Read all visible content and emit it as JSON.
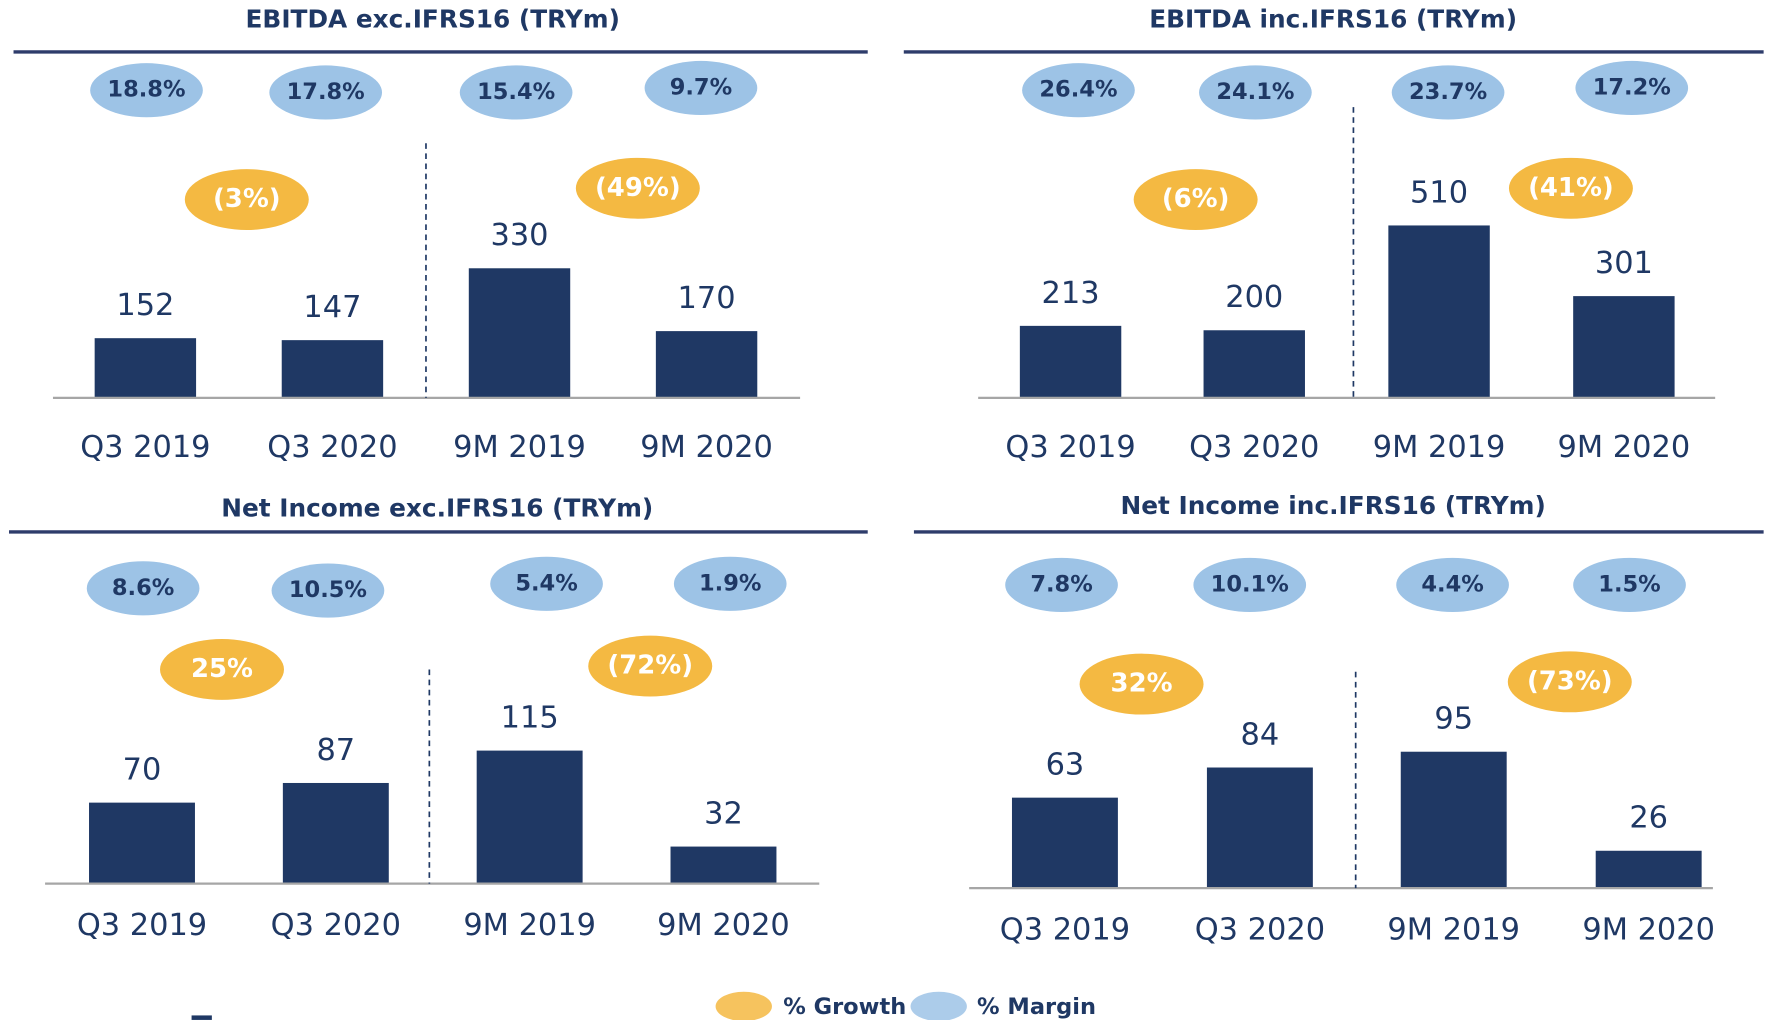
{
  "chart_data": [
    {
      "type": "bar",
      "title": "EBITDA exc.IFRS16 (TRYm)",
      "categories": [
        "Q3 2019",
        "Q3 2020",
        "9M 2019",
        "9M 2020"
      ],
      "values": [
        152,
        147,
        330,
        170
      ],
      "color": "#1f3864",
      "margins": [
        18.8,
        17.8,
        15.4,
        9.7
      ],
      "margin_labels": [
        "18.8%",
        "17.8%",
        "15.4%",
        "9.7%"
      ],
      "growth": [
        -3,
        -49
      ],
      "growth_labels": [
        "(3%)",
        "(49%)"
      ]
    },
    {
      "type": "bar",
      "title": "EBITDA inc.IFRS16 (TRYm)",
      "categories": [
        "Q3 2019",
        "Q3 2020",
        "9M 2019",
        "9M 2020"
      ],
      "values": [
        213,
        200,
        510,
        301
      ],
      "color": "#1f3864",
      "margins": [
        26.4,
        24.1,
        23.7,
        17.2
      ],
      "margin_labels": [
        "26.4%",
        "24.1%",
        "23.7%",
        "17.2%"
      ],
      "growth": [
        -6,
        -41
      ],
      "growth_labels": [
        "(6%)",
        "(41%)"
      ]
    },
    {
      "type": "bar",
      "title": "Net Income exc.IFRS16 (TRYm)",
      "categories": [
        "Q3 2019",
        "Q3 2020",
        "9M 2019",
        "9M 2020"
      ],
      "values": [
        70,
        87,
        115,
        32
      ],
      "color": "#1f3864",
      "margins": [
        8.6,
        10.5,
        5.4,
        1.9
      ],
      "margin_labels": [
        "8.6%",
        "10.5%",
        "5.4%",
        "1.9%"
      ],
      "growth": [
        25,
        -72
      ],
      "growth_labels": [
        "25%",
        "(72%)"
      ]
    },
    {
      "type": "bar",
      "title": "Net Income inc.IFRS16 (TRYm)",
      "categories": [
        "Q3 2019",
        "Q3 2020",
        "9M 2019",
        "9M 2020"
      ],
      "values": [
        63,
        84,
        95,
        26
      ],
      "color": "#1f3864",
      "margins": [
        7.8,
        10.1,
        4.4,
        1.5
      ],
      "margin_labels": [
        "7.8%",
        "10.1%",
        "4.4%",
        "1.5%"
      ],
      "growth": [
        32,
        -73
      ],
      "growth_labels": [
        "32%",
        "(73%)"
      ]
    }
  ],
  "legend": [
    {
      "name": "% Growth",
      "color": "#f4b942"
    },
    {
      "name": "% Margin",
      "color": "#9dc3e6"
    }
  ]
}
